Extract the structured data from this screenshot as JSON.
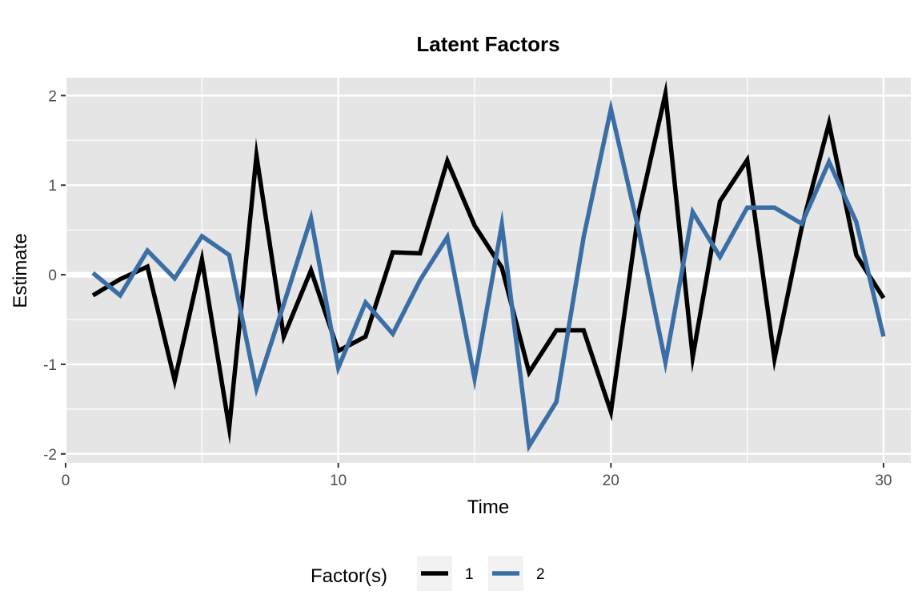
{
  "chart_data": {
    "type": "line",
    "title": "Latent Factors",
    "xlabel": "Time",
    "ylabel": "Estimate",
    "xlim": [
      0,
      31
    ],
    "ylim": [
      -2.1,
      2.2
    ],
    "x_ticks": [
      0,
      10,
      20,
      30
    ],
    "x_tick_labels": [
      "0",
      "10",
      "20",
      "30"
    ],
    "y_ticks": [
      -2,
      -1,
      0,
      1,
      2
    ],
    "y_tick_labels": [
      "-2",
      "-1",
      "0",
      "1",
      "2"
    ],
    "grid": true,
    "legend_position": "bottom",
    "legend_title": "Factor(s)",
    "x": [
      1,
      2,
      3,
      4,
      5,
      6,
      7,
      8,
      9,
      10,
      11,
      12,
      13,
      14,
      15,
      16,
      17,
      18,
      19,
      20,
      21,
      22,
      23,
      24,
      25,
      26,
      27,
      28,
      29,
      30
    ],
    "series": [
      {
        "name": "1",
        "color": "#000000",
        "values": [
          -0.23,
          -0.05,
          0.09,
          -1.18,
          0.17,
          -1.71,
          1.33,
          -0.69,
          0.05,
          -0.85,
          -0.69,
          0.25,
          0.24,
          1.27,
          0.55,
          0.08,
          -1.09,
          -0.62,
          -0.62,
          -1.53,
          0.67,
          2.02,
          -0.92,
          0.82,
          1.28,
          -0.94,
          0.53,
          1.69,
          0.22,
          -0.26
        ]
      },
      {
        "name": "2",
        "color": "#3b6ea5",
        "values": [
          0.02,
          -0.23,
          0.27,
          -0.04,
          0.43,
          0.22,
          -1.27,
          -0.33,
          0.63,
          -1.04,
          -0.31,
          -0.66,
          -0.06,
          0.42,
          -1.16,
          0.56,
          -1.91,
          -1.42,
          0.42,
          1.85,
          0.52,
          -0.98,
          0.7,
          0.2,
          0.75,
          0.75,
          0.57,
          1.26,
          0.59,
          -0.69
        ]
      }
    ]
  }
}
